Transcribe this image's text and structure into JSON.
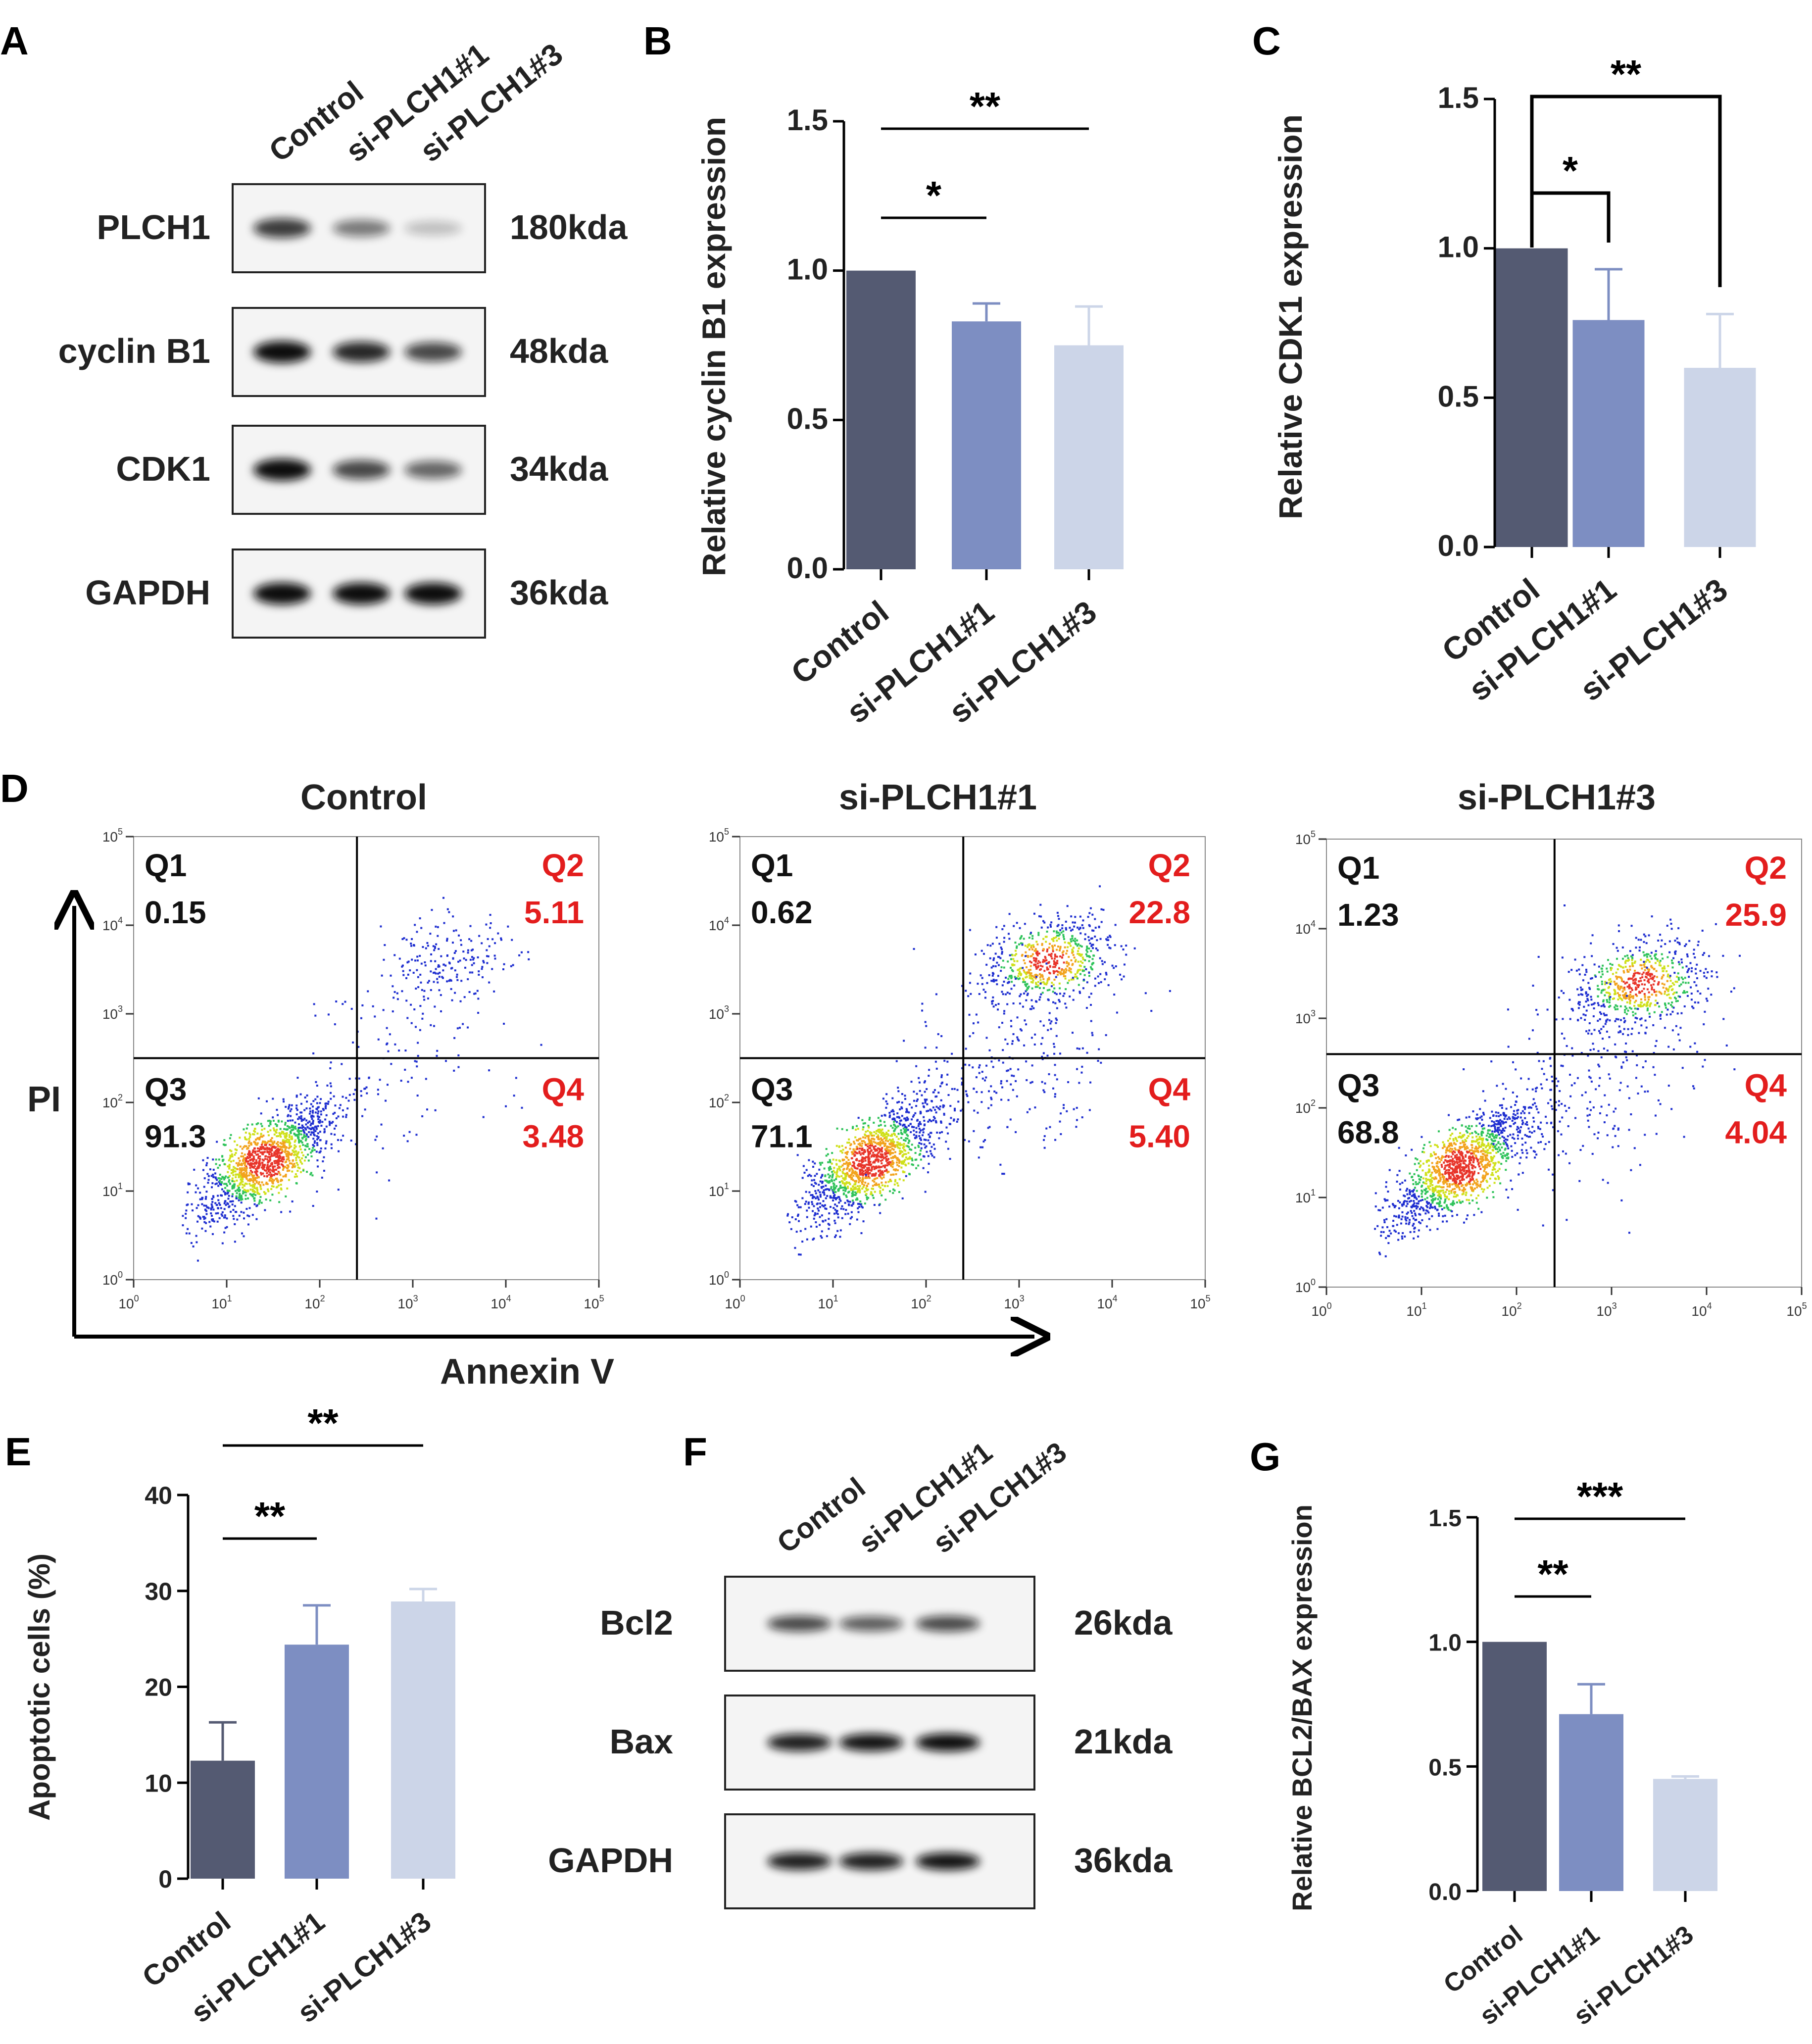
{
  "panels": {
    "A": "A",
    "B": "B",
    "C": "C",
    "D": "D",
    "E": "E",
    "F": "F",
    "G": "G"
  },
  "colors": {
    "control": "#545a72",
    "si1": "#7d8ec2",
    "si3": "#ccd5e8",
    "red_label": "#e31d1d",
    "text": "#222222"
  },
  "western_a": {
    "lanes": [
      "Control",
      "si-PLCH1#1",
      "si-PLCH1#3"
    ],
    "rows": [
      {
        "protein": "PLCH1",
        "kda": "180kda",
        "intensity": [
          0.75,
          0.45,
          0.12
        ]
      },
      {
        "protein": "cyclin B1",
        "kda": "48kda",
        "intensity": [
          1.0,
          0.85,
          0.7
        ]
      },
      {
        "protein": "CDK1",
        "kda": "34kda",
        "intensity": [
          1.0,
          0.7,
          0.55
        ]
      },
      {
        "protein": "GAPDH",
        "kda": "36kda",
        "intensity": [
          1.0,
          1.0,
          1.0
        ]
      }
    ]
  },
  "western_f": {
    "lanes": [
      "Control",
      "si-PLCH1#1",
      "si-PLCH1#3"
    ],
    "rows": [
      {
        "protein": "Bcl2",
        "kda": "26kda",
        "intensity": [
          0.7,
          0.6,
          0.7
        ]
      },
      {
        "protein": "Bax",
        "kda": "21kda",
        "intensity": [
          0.9,
          0.95,
          1.0
        ]
      },
      {
        "protein": "GAPDH",
        "kda": "36kda",
        "intensity": [
          0.9,
          0.9,
          0.95
        ]
      }
    ]
  },
  "chart_data": [
    {
      "panel": "B",
      "type": "bar",
      "categories": [
        "Control",
        "si-PLCH1#1",
        "si-PLCH1#3"
      ],
      "values": [
        1.0,
        0.83,
        0.75
      ],
      "errors": [
        0,
        0.06,
        0.13
      ],
      "ylabel": "Relative cyclin B1 expression",
      "ylim": [
        0,
        1.5
      ],
      "yticks": [
        "0.0",
        "0.5",
        "1.0",
        "1.5"
      ],
      "significance": [
        {
          "from": 0,
          "to": 1,
          "label": "*"
        },
        {
          "from": 0,
          "to": 2,
          "label": "**"
        }
      ]
    },
    {
      "panel": "C",
      "type": "bar",
      "categories": [
        "Control",
        "si-PLCH1#1",
        "si-PLCH1#3"
      ],
      "values": [
        1.0,
        0.76,
        0.6
      ],
      "errors": [
        0,
        0.17,
        0.18
      ],
      "ylabel": "Relative CDK1 expression",
      "ylim": [
        0,
        1.5
      ],
      "yticks": [
        "0.0",
        "0.5",
        "1.0",
        "1.5"
      ],
      "significance": [
        {
          "from": 0,
          "to": 1,
          "label": "*"
        },
        {
          "from": 0,
          "to": 2,
          "label": "**"
        }
      ]
    },
    {
      "panel": "D",
      "type": "scatter",
      "xlabel": "Annexin V",
      "ylabel": "PI",
      "axis_ticks": [
        "10",
        "0",
        "1",
        "2",
        "3",
        "4",
        "5"
      ],
      "plots": [
        {
          "title": "Control",
          "Q1": "0.15",
          "Q2": "5.11",
          "Q3": "91.3",
          "Q4": "3.48",
          "gate_x": 2.4,
          "gate_y": 2.5
        },
        {
          "title": "si-PLCH1#1",
          "Q1": "0.62",
          "Q2": "22.8",
          "Q3": "71.1",
          "Q4": "5.40",
          "gate_x": 2.4,
          "gate_y": 2.5
        },
        {
          "title": "si-PLCH1#3",
          "Q1": "1.23",
          "Q2": "25.9",
          "Q3": "68.8",
          "Q4": "4.04",
          "gate_x": 2.4,
          "gate_y": 2.6
        }
      ],
      "quadrant_names": [
        "Q1",
        "Q2",
        "Q3",
        "Q4"
      ]
    },
    {
      "panel": "E",
      "type": "bar",
      "categories": [
        "Control",
        "si-PLCH1#1",
        "si-PLCH1#3"
      ],
      "values": [
        12.3,
        24.4,
        28.9
      ],
      "errors": [
        4.0,
        4.1,
        1.3
      ],
      "ylabel": "Apoptotic cells (%)",
      "ylim": [
        0,
        40
      ],
      "yticks": [
        "0",
        "10",
        "20",
        "30",
        "40"
      ],
      "significance": [
        {
          "from": 0,
          "to": 1,
          "label": "**"
        },
        {
          "from": 0,
          "to": 2,
          "label": "**"
        }
      ]
    },
    {
      "panel": "G",
      "type": "bar",
      "categories": [
        "Control",
        "si-PLCH1#1",
        "si-PLCH1#3"
      ],
      "values": [
        1.0,
        0.71,
        0.45
      ],
      "errors": [
        0,
        0.12,
        0.01
      ],
      "ylabel": "Relative BCL2/BAX expression",
      "ylim": [
        0,
        1.5
      ],
      "yticks": [
        "0.0",
        "0.5",
        "1.0",
        "1.5"
      ],
      "significance": [
        {
          "from": 0,
          "to": 1,
          "label": "**"
        },
        {
          "from": 0,
          "to": 2,
          "label": "***"
        }
      ]
    }
  ]
}
